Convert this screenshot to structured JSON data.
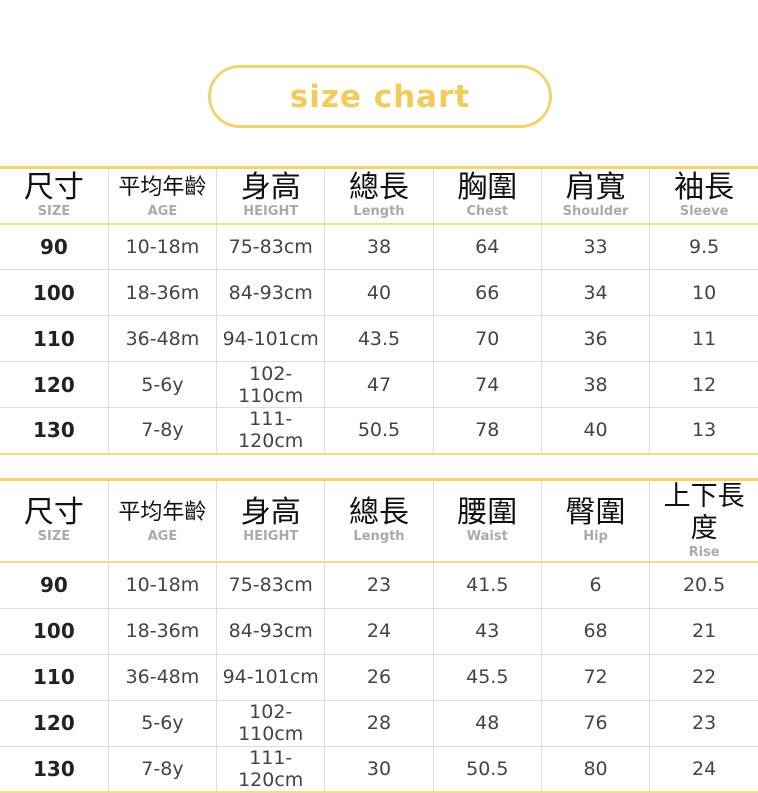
{
  "title": "size chart",
  "colors": {
    "accent": "#f3d36b",
    "title_text": "#f2cc5a"
  },
  "tables": [
    {
      "headers": [
        {
          "zh": "尺寸",
          "en": "SIZE"
        },
        {
          "zh": "平均年齡",
          "en": "AGE"
        },
        {
          "zh": "身高",
          "en": "HEIGHT"
        },
        {
          "zh": "總長",
          "en": "Length"
        },
        {
          "zh": "胸圍",
          "en": "Chest"
        },
        {
          "zh": "肩寬",
          "en": "Shoulder"
        },
        {
          "zh": "袖長",
          "en": "Sleeve"
        }
      ],
      "rows": [
        [
          "90",
          "10-18m",
          "75-83cm",
          "38",
          "64",
          "33",
          "9.5"
        ],
        [
          "100",
          "18-36m",
          "84-93cm",
          "40",
          "66",
          "34",
          "10"
        ],
        [
          "110",
          "36-48m",
          "94-101cm",
          "43.5",
          "70",
          "36",
          "11"
        ],
        [
          "120",
          "5-6y",
          "102-110cm",
          "47",
          "74",
          "38",
          "12"
        ],
        [
          "130",
          "7-8y",
          "111-120cm",
          "50.5",
          "78",
          "40",
          "13"
        ]
      ]
    },
    {
      "headers": [
        {
          "zh": "尺寸",
          "en": "SIZE"
        },
        {
          "zh": "平均年齡",
          "en": "AGE"
        },
        {
          "zh": "身高",
          "en": "HEIGHT"
        },
        {
          "zh": "總長",
          "en": "Length"
        },
        {
          "zh": "腰圍",
          "en": "Waist"
        },
        {
          "zh": "臀圍",
          "en": "Hip"
        },
        {
          "zh": "上下長度",
          "en": "Rise"
        }
      ],
      "rows": [
        [
          "90",
          "10-18m",
          "75-83cm",
          "23",
          "41.5",
          "6",
          "20.5"
        ],
        [
          "100",
          "18-36m",
          "84-93cm",
          "24",
          "43",
          "68",
          "21"
        ],
        [
          "110",
          "36-48m",
          "94-101cm",
          "26",
          "45.5",
          "72",
          "22"
        ],
        [
          "120",
          "5-6y",
          "102-110cm",
          "28",
          "48",
          "76",
          "23"
        ],
        [
          "130",
          "7-8y",
          "111-120cm",
          "30",
          "50.5",
          "80",
          "24"
        ]
      ]
    }
  ]
}
